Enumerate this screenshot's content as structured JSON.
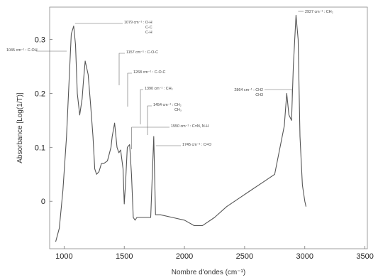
{
  "chart_data": {
    "type": "line",
    "xlabel": "Nombre d'ondes (cm⁻¹)",
    "ylabel": "Absorbance [Log(1/T)]",
    "xlim": [
      880,
      3520
    ],
    "ylim": [
      -0.088,
      0.36
    ],
    "xticks": [
      1000,
      1500,
      2000,
      2500,
      3000,
      3500
    ],
    "yticks": [
      0,
      0.1,
      0.2,
      0.3
    ],
    "grid": false,
    "series": [
      {
        "color": "#555555",
        "x": [
          930,
          960,
          990,
          1020,
          1045,
          1060,
          1080,
          1095,
          1110,
          1130,
          1150,
          1160,
          1175,
          1200,
          1220,
          1240,
          1255,
          1270,
          1290,
          1310,
          1330,
          1360,
          1390,
          1400,
          1420,
          1440,
          1455,
          1470,
          1490,
          1500,
          1510,
          1525,
          1545,
          1560,
          1575,
          1590,
          1605,
          1620,
          1700,
          1720,
          1745,
          1760,
          1800,
          1900,
          2000,
          2080,
          2150,
          2250,
          2350,
          2450,
          2550,
          2650,
          2750,
          2830,
          2850,
          2868,
          2890,
          2905,
          2927,
          2945,
          2960,
          2980,
          3000,
          3010
        ],
        "y": [
          -0.075,
          -0.05,
          0.02,
          0.12,
          0.24,
          0.31,
          0.325,
          0.29,
          0.2,
          0.16,
          0.19,
          0.22,
          0.26,
          0.235,
          0.18,
          0.12,
          0.06,
          0.05,
          0.055,
          0.07,
          0.07,
          0.075,
          0.1,
          0.12,
          0.145,
          0.1,
          0.09,
          0.095,
          0.06,
          -0.005,
          0.03,
          0.1,
          0.105,
          0.05,
          -0.03,
          -0.035,
          -0.03,
          -0.03,
          -0.03,
          -0.03,
          0.12,
          -0.025,
          -0.025,
          -0.03,
          -0.035,
          -0.045,
          -0.045,
          -0.03,
          -0.01,
          0.005,
          0.02,
          0.035,
          0.05,
          0.14,
          0.2,
          0.16,
          0.15,
          0.25,
          0.345,
          0.3,
          0.12,
          0.03,
          0.0,
          -0.01
        ]
      }
    ],
    "annotations": [
      {
        "text": "1045 cm⁻¹ : C-OH",
        "lines": [
          "1045 cm⁻¹ : C-OH"
        ],
        "x": 1045,
        "y": 0.275
      },
      {
        "text": "1079 cm⁻¹ : O-H, C-C, C-H",
        "lines": [
          "1079 cm⁻¹ : O-H",
          "C-C",
          "C-H"
        ],
        "x": 1079,
        "y": 0.325
      },
      {
        "text": "1157 cm⁻¹ : C-O-C",
        "lines": [
          "1157 cm⁻¹ : C-O-C"
        ],
        "x": 1157,
        "y": 0.26
      },
      {
        "text": "1268 cm⁻¹ : C-O-C",
        "lines": [
          "1268 cm⁻¹ : C-O-C"
        ],
        "x": 1268,
        "y": 0.235
      },
      {
        "text": "1390 cm⁻¹ : CH₂",
        "lines": [
          "1390 cm⁻¹ : CH₂"
        ],
        "x": 1390,
        "y": 0.19
      },
      {
        "text": "1454 cm⁻¹ : CH₂, CH₃",
        "lines": [
          "1454 cm⁻¹ : CH₂",
          "CH₃"
        ],
        "x": 1454,
        "y": 0.165
      },
      {
        "text": "1550 cm⁻¹ : C=N, N-H",
        "lines": [
          "1550 cm⁻¹ : C=N, N-H"
        ],
        "x": 1550,
        "y": 0.12
      },
      {
        "text": "1745 cm⁻¹ : C=O",
        "lines": [
          "1745 cm⁻¹ : C=O"
        ],
        "x": 1745,
        "y": 0.1
      },
      {
        "text": "2864 cm⁻¹ : CH2, CH3",
        "lines": [
          "2864 cm⁻¹ : CH2",
          "CH3"
        ],
        "x": 2864,
        "y": 0.2
      },
      {
        "text": "2927 cm⁻¹ : CH₂",
        "lines": [
          "2927 cm⁻¹ : CH₂"
        ],
        "x": 2927,
        "y": 0.345
      }
    ]
  }
}
